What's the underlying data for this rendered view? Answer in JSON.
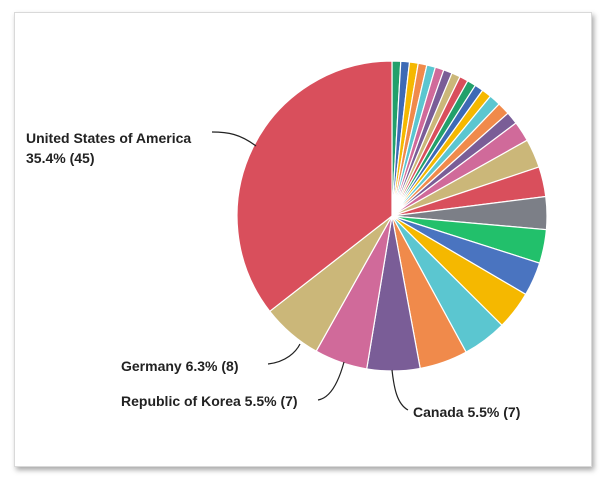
{
  "chart_data": {
    "type": "pie",
    "title": "",
    "start_angle_deg": 0,
    "direction": "clockwise",
    "slices": [
      {
        "value": 0.9,
        "color": "#22a06b"
      },
      {
        "value": 0.9,
        "color": "#3d6ab5"
      },
      {
        "value": 0.9,
        "color": "#f5b800"
      },
      {
        "value": 0.9,
        "color": "#f08a4b"
      },
      {
        "value": 0.9,
        "color": "#5bc6d0"
      },
      {
        "value": 0.9,
        "color": "#d06a9a"
      },
      {
        "value": 0.9,
        "color": "#7a5d97"
      },
      {
        "value": 0.9,
        "color": "#cbb779"
      },
      {
        "value": 0.9,
        "color": "#d94f5c"
      },
      {
        "value": 0.9,
        "color": "#22a06b"
      },
      {
        "value": 0.9,
        "color": "#3d6ab5"
      },
      {
        "value": 1.0,
        "color": "#f5b800"
      },
      {
        "value": 1.2,
        "color": "#5bc6d0"
      },
      {
        "value": 1.3,
        "color": "#f08a4b"
      },
      {
        "value": 1.3,
        "color": "#7a5d97"
      },
      {
        "value": 2.1,
        "color": "#d06a9a"
      },
      {
        "value": 3.0,
        "color": "#cbb779"
      },
      {
        "value": 3.1,
        "color": "#d94f5c"
      },
      {
        "value": 3.4,
        "color": "#7c7f87"
      },
      {
        "value": 3.5,
        "color": "#22c06b"
      },
      {
        "value": 3.5,
        "color": "#4a74c0"
      },
      {
        "value": 4.0,
        "color": "#f5b800"
      },
      {
        "value": 4.6,
        "color": "#5bc6d0"
      },
      {
        "value": 5.0,
        "color": "#f08a4b"
      },
      {
        "value": 5.5,
        "color": "#7a5d97",
        "label": "Canada 5.5% (7)"
      },
      {
        "value": 5.5,
        "color": "#d06a9a",
        "label": "Republic of Korea 5.5% (7)"
      },
      {
        "value": 6.3,
        "color": "#cbb779",
        "label": "Germany 6.3% (8)"
      },
      {
        "value": 35.4,
        "color": "#d94f5c",
        "label": "United States of America 35.4% (45)"
      }
    ],
    "usa_label_lines": [
      "United States of America",
      "35.4% (45)"
    ]
  }
}
